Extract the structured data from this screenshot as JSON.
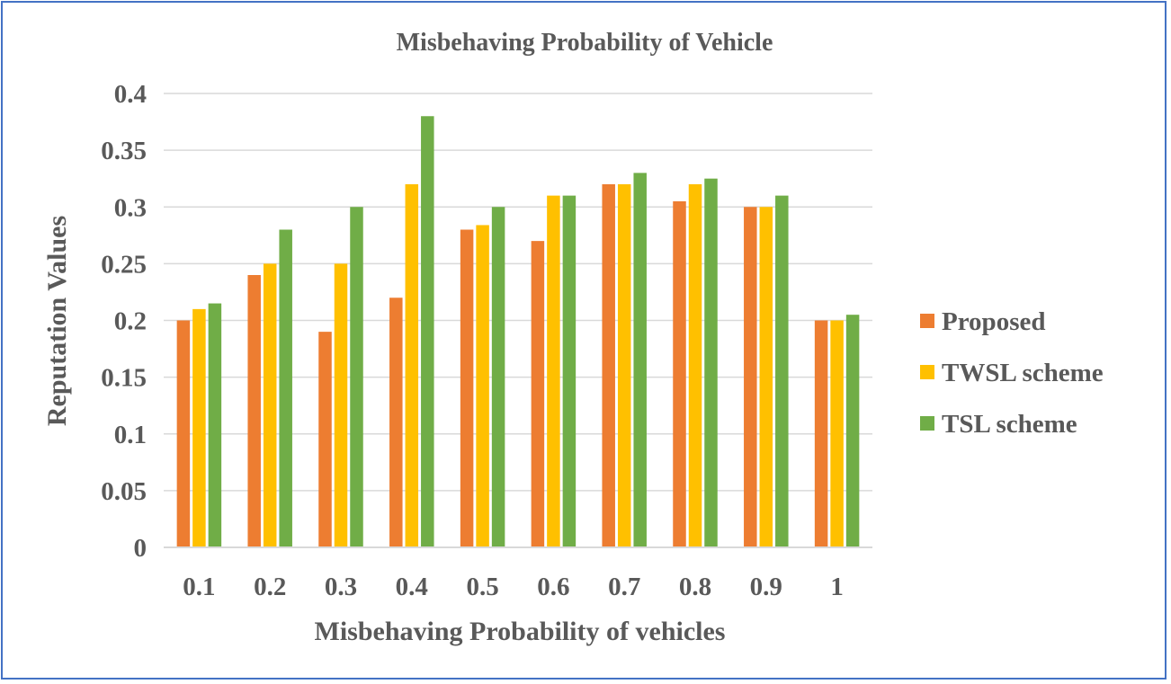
{
  "chart_data": {
    "type": "bar",
    "title": "Misbehaving Probability  of Vehicle",
    "xlabel": "Misbehaving Probability  of vehicles",
    "ylabel": "Reputation Values",
    "categories": [
      "0.1",
      "0.2",
      "0.3",
      "0.4",
      "0.5",
      "0.6",
      "0.7",
      "0.8",
      "0.9",
      "1"
    ],
    "yticks": [
      "0",
      "0.05",
      "0.1",
      "0.15",
      "0.2",
      "0.25",
      "0.3",
      "0.35",
      "0.4"
    ],
    "ylim": [
      0,
      0.4
    ],
    "grid": true,
    "legend_position": "right",
    "series": [
      {
        "name": "Proposed",
        "color": "#ed7d31",
        "values": [
          0.2,
          0.24,
          0.19,
          0.22,
          0.28,
          0.27,
          0.32,
          0.305,
          0.3,
          0.2
        ]
      },
      {
        "name": "TWSL scheme",
        "color": "#ffc000",
        "values": [
          0.21,
          0.25,
          0.25,
          0.32,
          0.284,
          0.31,
          0.32,
          0.32,
          0.3,
          0.2
        ]
      },
      {
        "name": "TSL scheme",
        "color": "#70ad47",
        "values": [
          0.215,
          0.28,
          0.3,
          0.38,
          0.3,
          0.31,
          0.33,
          0.325,
          0.31,
          0.205
        ]
      }
    ]
  }
}
